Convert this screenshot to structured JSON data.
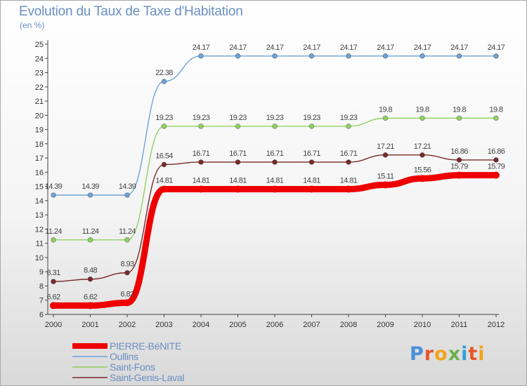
{
  "title": "Evolution du Taux de Taxe d'Habitation",
  "unit": "(en %)",
  "logo": {
    "text": "Proxiti",
    "letter_colors": [
      "#4a90d9",
      "#e8562a",
      "#f2a31b",
      "#6ab04c",
      "#2f9fd8",
      "#e8562a",
      "#f2a31b"
    ]
  },
  "chart_data": {
    "type": "line",
    "title": "Evolution du Taux de Taxe d'Habitation",
    "ylabel": "(en %)",
    "xlabel": "",
    "x": [
      "2000",
      "2001",
      "2002",
      "2003",
      "2004",
      "2005",
      "2006",
      "2007",
      "2008",
      "2009",
      "2010",
      "2011",
      "2012"
    ],
    "ylim": [
      6,
      25
    ],
    "yticks": [
      6,
      7,
      8,
      9,
      10,
      11,
      12,
      13,
      14,
      15,
      16,
      17,
      18,
      19,
      20,
      21,
      22,
      23,
      24,
      25
    ],
    "grid": false,
    "legend_position": "bottom-left",
    "series": [
      {
        "name": "PIERRE-BéNITE",
        "color": "#ee0000",
        "values": [
          6.62,
          6.62,
          6.82,
          14.81,
          14.81,
          14.81,
          14.81,
          14.81,
          14.81,
          15.11,
          15.56,
          15.79,
          15.79
        ],
        "labels": [
          "6.62",
          "6.62",
          "6.82",
          "14.81",
          "14.81",
          "14.81",
          "14.81",
          "14.81",
          "14.81",
          "15.11",
          "15.56",
          "15.79",
          "15.79"
        ]
      },
      {
        "name": "Oullins",
        "color": "#6fa3d6",
        "values": [
          14.39,
          14.39,
          14.39,
          22.38,
          24.17,
          24.17,
          24.17,
          24.17,
          24.17,
          24.17,
          24.17,
          24.17,
          24.17
        ],
        "labels": [
          "14.39",
          "14.39",
          "14.39",
          "22.38",
          "24.17",
          "24.17",
          "24.17",
          "24.17",
          "24.17",
          "24.17",
          "24.17",
          "24.17",
          "24.17"
        ]
      },
      {
        "name": "Saint-Fons",
        "color": "#8fd163",
        "values": [
          11.24,
          11.24,
          11.24,
          19.23,
          19.23,
          19.23,
          19.23,
          19.23,
          19.23,
          19.8,
          19.8,
          19.8,
          19.8
        ],
        "labels": [
          "11.24",
          "11.24",
          "11.24",
          "19.23",
          "19.23",
          "19.23",
          "19.23",
          "19.23",
          "19.23",
          "19.8",
          "19.8",
          "19.8",
          "19.8"
        ]
      },
      {
        "name": "Saint-Genis-Laval",
        "color": "#7a2a2a",
        "values": [
          8.31,
          8.48,
          8.93,
          16.54,
          16.71,
          16.71,
          16.71,
          16.71,
          16.71,
          17.21,
          17.21,
          16.86,
          16.86
        ],
        "labels": [
          "8.31",
          "8.48",
          "8.93",
          "16.54",
          "16.71",
          "16.71",
          "16.71",
          "16.71",
          "16.71",
          "17.21",
          "17.21",
          "16.86",
          "16.86"
        ]
      }
    ]
  }
}
